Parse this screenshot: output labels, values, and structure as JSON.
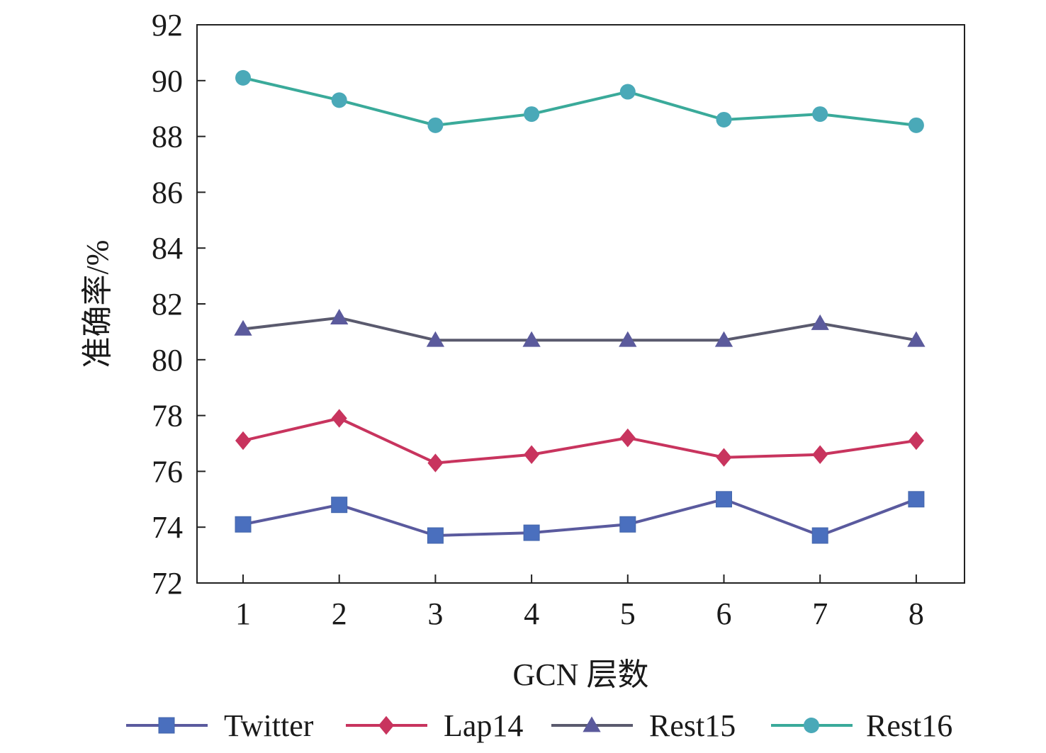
{
  "chart_data": {
    "type": "line",
    "title": "",
    "xlabel": "GCN 层数",
    "ylabel": "准确率/%",
    "categories": [
      "1",
      "2",
      "3",
      "4",
      "5",
      "6",
      "7",
      "8"
    ],
    "ylim": [
      72,
      92
    ],
    "yticks": [
      "72",
      "74",
      "76",
      "78",
      "80",
      "82",
      "84",
      "86",
      "88",
      "90",
      "92"
    ],
    "grid": false,
    "legend_position": "bottom",
    "series": [
      {
        "name": "Twitter",
        "color": "#4a6fbe",
        "line_color": "#5a5a9e",
        "marker": "square",
        "values": [
          74.1,
          74.8,
          73.7,
          73.8,
          74.1,
          75.0,
          73.7,
          75.0
        ]
      },
      {
        "name": "Lap14",
        "color": "#c8345e",
        "line_color": "#c8345e",
        "marker": "diamond",
        "values": [
          77.1,
          77.9,
          76.3,
          76.6,
          77.2,
          76.5,
          76.6,
          77.1
        ]
      },
      {
        "name": "Rest15",
        "color": "#5b5a9c",
        "line_color": "#5a5a6e",
        "marker": "triangle",
        "values": [
          81.1,
          81.5,
          80.7,
          80.7,
          80.7,
          80.7,
          81.3,
          80.7
        ]
      },
      {
        "name": "Rest16",
        "color": "#4aa9b8",
        "line_color": "#3aaa9a",
        "marker": "circle",
        "values": [
          90.1,
          89.3,
          88.4,
          88.8,
          89.6,
          88.6,
          88.8,
          88.4
        ]
      }
    ]
  }
}
